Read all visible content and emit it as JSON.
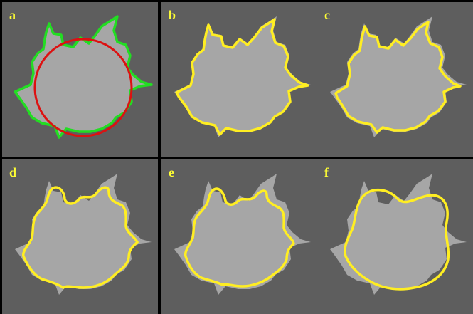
{
  "panels": [
    {
      "id": "a",
      "label": "a",
      "contour": "initial",
      "contour_color": "#22dd22",
      "circle_color": "#dd1111"
    },
    {
      "id": "b",
      "label": "b",
      "contour": "fine",
      "contour_color": "#ffee22"
    },
    {
      "id": "c",
      "label": "c",
      "contour": "fine",
      "contour_color": "#ffee22"
    },
    {
      "id": "d",
      "label": "d",
      "contour": "medium",
      "contour_color": "#ffee22"
    },
    {
      "id": "e",
      "label": "e",
      "contour": "medium",
      "contour_color": "#ffee22"
    },
    {
      "id": "f",
      "label": "f",
      "contour": "smooth",
      "contour_color": "#ffee22"
    }
  ],
  "colors": {
    "background": "#5e5e5e",
    "leaf_fill": "#a6a6a6",
    "label_color": "#ffff33",
    "divider": "#000000"
  }
}
